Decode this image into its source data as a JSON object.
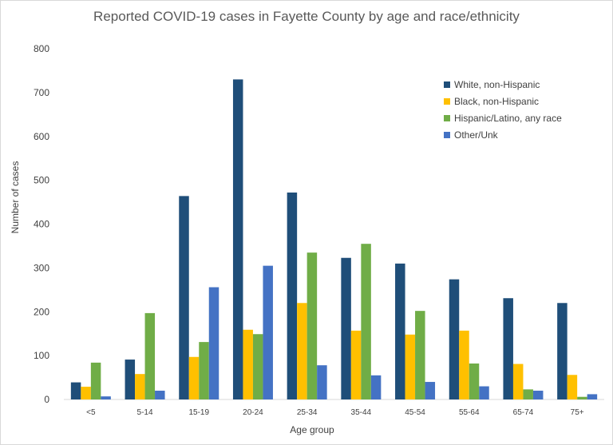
{
  "chart_data": {
    "type": "bar",
    "title": "Reported COVID-19 cases in Fayette County by age and race/ethnicity",
    "xlabel": "Age group",
    "ylabel": "Number of cases",
    "ylim": [
      0,
      800
    ],
    "yticks": [
      0,
      100,
      200,
      300,
      400,
      500,
      600,
      700,
      800
    ],
    "grid": false,
    "legend_position": "top-right",
    "categories": [
      "<5",
      "5-14",
      "15-19",
      "20-24",
      "25-34",
      "35-44",
      "45-54",
      "55-64",
      "65-74",
      "75+"
    ],
    "series": [
      {
        "name": "White, non-Hispanic",
        "color": "#1f4e79",
        "values": [
          39,
          91,
          464,
          730,
          472,
          323,
          310,
          274,
          231,
          220
        ]
      },
      {
        "name": "Black, non-Hispanic",
        "color": "#ffc000",
        "values": [
          29,
          58,
          97,
          159,
          220,
          157,
          148,
          157,
          81,
          56
        ]
      },
      {
        "name": "Hispanic/Latino, any race",
        "color": "#70ad47",
        "values": [
          84,
          197,
          131,
          149,
          335,
          355,
          202,
          82,
          23,
          6
        ]
      },
      {
        "name": "Other/Unk",
        "color": "#4472c4",
        "values": [
          7,
          20,
          256,
          305,
          78,
          55,
          40,
          30,
          20,
          12
        ]
      }
    ]
  }
}
